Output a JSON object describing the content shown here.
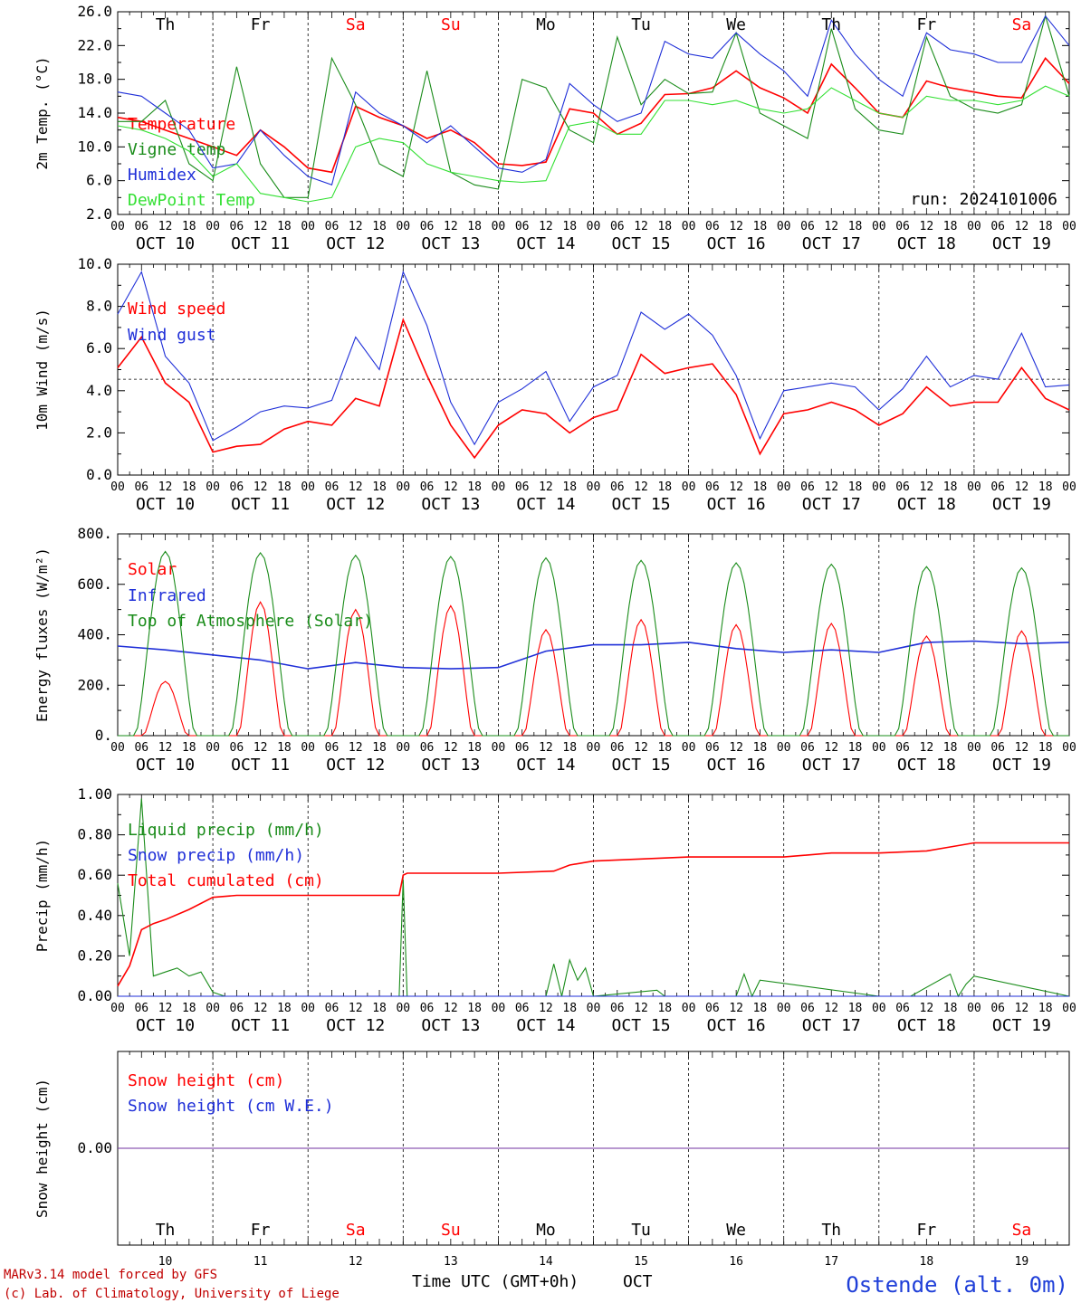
{
  "title": "",
  "run_label": "run: 2024101006",
  "station": "Ostende (alt. 0m)",
  "footer": [
    "MARv3.14 model forced by GFS",
    "(c) Lab. of Climatology, University of Liege"
  ],
  "xaxis_label": "Time UTC (GMT+0h)",
  "month_label": "OCT",
  "hour_ticks": [
    "00",
    "06",
    "12",
    "18"
  ],
  "date_labels": [
    "OCT 10",
    "OCT 11",
    "OCT 12",
    "OCT 13",
    "OCT 14",
    "OCT 15",
    "OCT 16",
    "OCT 17",
    "OCT 18",
    "OCT 19"
  ],
  "day_numbers": [
    "10",
    "11",
    "12",
    "13",
    "14",
    "15",
    "16",
    "17",
    "18",
    "19"
  ],
  "weekdays": [
    {
      "label": "Th",
      "weekend": false
    },
    {
      "label": "Fr",
      "weekend": false
    },
    {
      "label": "Sa",
      "weekend": true
    },
    {
      "label": "Su",
      "weekend": true
    },
    {
      "label": "Mo",
      "weekend": false
    },
    {
      "label": "Tu",
      "weekend": false
    },
    {
      "label": "We",
      "weekend": false
    },
    {
      "label": "Th",
      "weekend": false
    },
    {
      "label": "Fr",
      "weekend": false
    },
    {
      "label": "Sa",
      "weekend": true
    }
  ],
  "colors": {
    "red": "#ff0000",
    "green": "#1a8c1a",
    "blue": "#1f2fd8",
    "lightgreen": "#33e033",
    "purple": "#7030a0",
    "weekend": "#ff0000",
    "footer": "#c00000"
  },
  "chart_data": [
    {
      "id": "temp",
      "type": "line",
      "ylabel": "2m Temp. (°C)",
      "ylim": [
        2.0,
        26.0
      ],
      "yticks": [
        "2.0",
        "6.0",
        "10.0",
        "14.0",
        "18.0",
        "22.0",
        "26.0"
      ],
      "x_unit": "hours since Oct 10 00 UTC",
      "series": [
        {
          "name": "Temperature",
          "color": "#ff0000",
          "x": [
            0,
            6,
            12,
            18,
            24,
            30,
            36,
            42,
            48,
            54,
            60,
            66,
            72,
            78,
            84,
            90,
            96,
            102,
            108,
            114,
            120,
            126,
            132,
            138,
            144,
            150,
            156,
            162,
            168,
            174,
            180,
            186,
            192,
            198,
            204,
            210,
            216,
            222,
            228,
            234,
            240
          ],
          "y": [
            13.5,
            13,
            12,
            11,
            10,
            9,
            12,
            10,
            7.5,
            7,
            14.8,
            13.5,
            12.5,
            11,
            12,
            10.5,
            8,
            7.8,
            8.2,
            14.5,
            14,
            11.5,
            12.8,
            16.2,
            16.3,
            17,
            19,
            17,
            15.8,
            14,
            19.8,
            17,
            14,
            13.5,
            17.8,
            17,
            16.5,
            16,
            15.8,
            20.5,
            17.5
          ]
        },
        {
          "name": "Vigne temp",
          "color": "#1a8c1a",
          "x": [
            0,
            6,
            12,
            18,
            24,
            30,
            36,
            42,
            48,
            54,
            60,
            66,
            72,
            78,
            84,
            90,
            96,
            102,
            108,
            114,
            120,
            126,
            132,
            138,
            144,
            150,
            156,
            162,
            168,
            174,
            180,
            186,
            192,
            198,
            204,
            210,
            216,
            222,
            228,
            234,
            240
          ],
          "y": [
            13,
            13,
            15.5,
            8,
            6,
            19.5,
            8,
            4,
            4,
            20.5,
            15,
            8,
            6.5,
            19,
            7,
            5.5,
            5,
            18,
            17,
            12,
            10.5,
            23,
            15,
            18,
            16.3,
            16.5,
            23.5,
            14,
            12.5,
            11,
            24,
            14.5,
            12,
            11.5,
            23,
            16,
            14.5,
            14,
            15,
            25.5,
            16
          ]
        },
        {
          "name": "Humidex",
          "color": "#1f2fd8",
          "x": [
            0,
            6,
            12,
            18,
            24,
            30,
            36,
            42,
            48,
            54,
            60,
            66,
            72,
            78,
            84,
            90,
            96,
            102,
            108,
            114,
            120,
            126,
            132,
            138,
            144,
            150,
            156,
            162,
            168,
            174,
            180,
            186,
            192,
            198,
            204,
            210,
            216,
            222,
            228,
            234,
            240
          ],
          "y": [
            16.5,
            16,
            14,
            12,
            7.5,
            8,
            12,
            9,
            6.5,
            5.5,
            16.5,
            14,
            12.5,
            10.5,
            12.5,
            10,
            7.5,
            7,
            8.5,
            17.5,
            15,
            13,
            14,
            22.5,
            21,
            20.5,
            23.5,
            21,
            19,
            16,
            25,
            21,
            18,
            16,
            23.5,
            21.5,
            21,
            20,
            20,
            25.5,
            22
          ]
        },
        {
          "name": "DewPoint Temp",
          "color": "#33e033",
          "x": [
            0,
            6,
            12,
            18,
            24,
            30,
            36,
            42,
            48,
            54,
            60,
            66,
            72,
            78,
            84,
            90,
            96,
            102,
            108,
            114,
            120,
            126,
            132,
            138,
            144,
            150,
            156,
            162,
            168,
            174,
            180,
            186,
            192,
            198,
            204,
            210,
            216,
            222,
            228,
            234,
            240
          ],
          "y": [
            12.5,
            12,
            11,
            9.5,
            6.5,
            8,
            4.5,
            4,
            3.5,
            4,
            10,
            11,
            10.5,
            8,
            7,
            6.5,
            6,
            5.8,
            6,
            12.5,
            13,
            11.5,
            11.5,
            15.5,
            15.5,
            15,
            15.5,
            14.5,
            14,
            14.5,
            17,
            15.5,
            14,
            13.5,
            16,
            15.5,
            15.5,
            15,
            15.5,
            17.2,
            16
          ]
        }
      ]
    },
    {
      "id": "wind",
      "type": "line",
      "ylabel": "10m Wind (m/s)",
      "ylim": [
        0.0,
        11.0
      ],
      "yticks": [
        "0.0",
        "2.0",
        "4.0",
        "6.0",
        "8.0",
        "10.0"
      ],
      "ref_line": 5.0,
      "series": [
        {
          "name": "Wind speed",
          "color": "#ff0000",
          "x": [
            0,
            6,
            12,
            18,
            24,
            30,
            36,
            42,
            48,
            54,
            60,
            66,
            72,
            78,
            84,
            90,
            96,
            102,
            108,
            114,
            120,
            126,
            132,
            138,
            144,
            150,
            156,
            162,
            168,
            174,
            180,
            186,
            192,
            198,
            204,
            210,
            216,
            222,
            228,
            234,
            240
          ],
          "y": [
            5.6,
            7.2,
            4.8,
            3.8,
            1.2,
            1.5,
            1.6,
            2.4,
            2.8,
            2.6,
            4,
            3.6,
            8.1,
            5.2,
            2.6,
            0.9,
            2.6,
            3.4,
            3.2,
            2.2,
            3,
            3.4,
            6.3,
            5.3,
            5.6,
            5.8,
            4.2,
            1.1,
            3.2,
            3.4,
            3.8,
            3.4,
            2.6,
            3.2,
            4.6,
            3.6,
            3.8,
            3.8,
            5.6,
            4.0,
            3.4
          ]
        },
        {
          "name": "Wind gust",
          "color": "#1f2fd8",
          "x": [
            0,
            6,
            12,
            18,
            24,
            30,
            36,
            42,
            48,
            54,
            60,
            66,
            72,
            78,
            84,
            90,
            96,
            102,
            108,
            114,
            120,
            126,
            132,
            138,
            144,
            150,
            156,
            162,
            168,
            174,
            180,
            186,
            192,
            198,
            204,
            210,
            216,
            222,
            228,
            234,
            240
          ],
          "y": [
            8.4,
            10.6,
            6.2,
            4.8,
            1.8,
            2.5,
            3.3,
            3.6,
            3.5,
            3.9,
            7.2,
            5.5,
            10.6,
            7.8,
            3.8,
            1.6,
            3.8,
            4.5,
            5.4,
            2.8,
            4.6,
            5.2,
            8.5,
            7.6,
            8.4,
            7.3,
            5.2,
            1.9,
            4.4,
            4.6,
            4.8,
            4.6,
            3.4,
            4.5,
            6.2,
            4.6,
            5.2,
            5.0,
            7.4,
            4.6,
            4.7
          ]
        }
      ]
    },
    {
      "id": "flux",
      "type": "line",
      "ylabel": "Energy fluxes (W/m²)",
      "ylim": [
        0,
        800
      ],
      "yticks": [
        "0.",
        "200.",
        "400.",
        "600.",
        "800."
      ],
      "series": [
        {
          "name": "Solar",
          "color": "#ff0000",
          "peaks": [
            {
              "h": 12,
              "v": 215
            },
            {
              "h": 36,
              "v": 530
            },
            {
              "h": 60,
              "v": 500
            },
            {
              "h": 84,
              "v": 515
            },
            {
              "h": 108,
              "v": 420
            },
            {
              "h": 132,
              "v": 460
            },
            {
              "h": 156,
              "v": 440
            },
            {
              "h": 180,
              "v": 445
            },
            {
              "h": 204,
              "v": 395
            },
            {
              "h": 228,
              "v": 415
            }
          ]
        },
        {
          "name": "Infrared",
          "color": "#1f2fd8",
          "x": [
            0,
            12,
            24,
            36,
            48,
            60,
            72,
            84,
            96,
            108,
            120,
            132,
            144,
            156,
            168,
            180,
            192,
            204,
            216,
            228,
            240
          ],
          "y": [
            355,
            340,
            320,
            300,
            265,
            290,
            270,
            265,
            270,
            335,
            360,
            360,
            370,
            345,
            330,
            340,
            330,
            370,
            375,
            365,
            370
          ]
        },
        {
          "name": "Top of Atmosphere (Solar)",
          "color": "#1a8c1a",
          "peaks": [
            {
              "h": 12,
              "v": 730
            },
            {
              "h": 36,
              "v": 725
            },
            {
              "h": 60,
              "v": 715
            },
            {
              "h": 84,
              "v": 710
            },
            {
              "h": 108,
              "v": 705
            },
            {
              "h": 132,
              "v": 695
            },
            {
              "h": 156,
              "v": 685
            },
            {
              "h": 180,
              "v": 680
            },
            {
              "h": 204,
              "v": 670
            },
            {
              "h": 228,
              "v": 665
            }
          ]
        }
      ]
    },
    {
      "id": "precip",
      "type": "line",
      "ylabel": "Precip (mm/h)",
      "ylim": [
        0.0,
        1.0
      ],
      "yticks": [
        "0.00",
        "0.20",
        "0.40",
        "0.60",
        "0.80",
        "1.00"
      ],
      "series": [
        {
          "name": "Liquid precip (mm/h)",
          "color": "#1a8c1a",
          "x": [
            0,
            3,
            6,
            9,
            12,
            15,
            18,
            21,
            24,
            27,
            30,
            60,
            71,
            72,
            73,
            74,
            108,
            110,
            112,
            114,
            116,
            118,
            120,
            136,
            138,
            156,
            158,
            160,
            162,
            192,
            198,
            200,
            210,
            212,
            214,
            216,
            240
          ],
          "y": [
            0.56,
            0.2,
            0.98,
            0.1,
            0.12,
            0.14,
            0.1,
            0.12,
            0.02,
            0.0,
            0.0,
            0.0,
            0.0,
            0.58,
            0.0,
            0.0,
            0.0,
            0.16,
            0.0,
            0.18,
            0.08,
            0.14,
            0.0,
            0.03,
            0.0,
            0.0,
            0.11,
            0.0,
            0.08,
            0.0,
            0.0,
            0.0,
            0.11,
            0.0,
            0.06,
            0.1,
            0.0
          ]
        },
        {
          "name": "Snow precip (mm/h)",
          "color": "#1f2fd8",
          "x": [
            0,
            240
          ],
          "y": [
            0,
            0
          ]
        },
        {
          "name": "Total cumulated (cm)",
          "color": "#ff0000",
          "x": [
            0,
            3,
            6,
            9,
            12,
            18,
            24,
            30,
            60,
            71,
            72,
            73,
            96,
            110,
            114,
            120,
            144,
            168,
            180,
            192,
            204,
            210,
            216,
            240
          ],
          "y": [
            0.05,
            0.15,
            0.33,
            0.36,
            0.38,
            0.43,
            0.49,
            0.5,
            0.5,
            0.5,
            0.6,
            0.61,
            0.61,
            0.62,
            0.65,
            0.67,
            0.69,
            0.69,
            0.71,
            0.71,
            0.72,
            0.74,
            0.76,
            0.76
          ]
        }
      ]
    },
    {
      "id": "snow",
      "type": "line",
      "ylabel": "Snow height (cm)",
      "ylim": [
        -1.0,
        1.0
      ],
      "yticks": [
        "0.00"
      ],
      "series": [
        {
          "name": "Snow height (cm)",
          "color": "#ff0000",
          "x": [
            0,
            240
          ],
          "y": [
            0,
            0
          ]
        },
        {
          "name": "Snow height (cm W.E.)",
          "color": "#1f2fd8",
          "x": [
            0,
            240
          ],
          "y": [
            0,
            0
          ]
        }
      ]
    }
  ]
}
